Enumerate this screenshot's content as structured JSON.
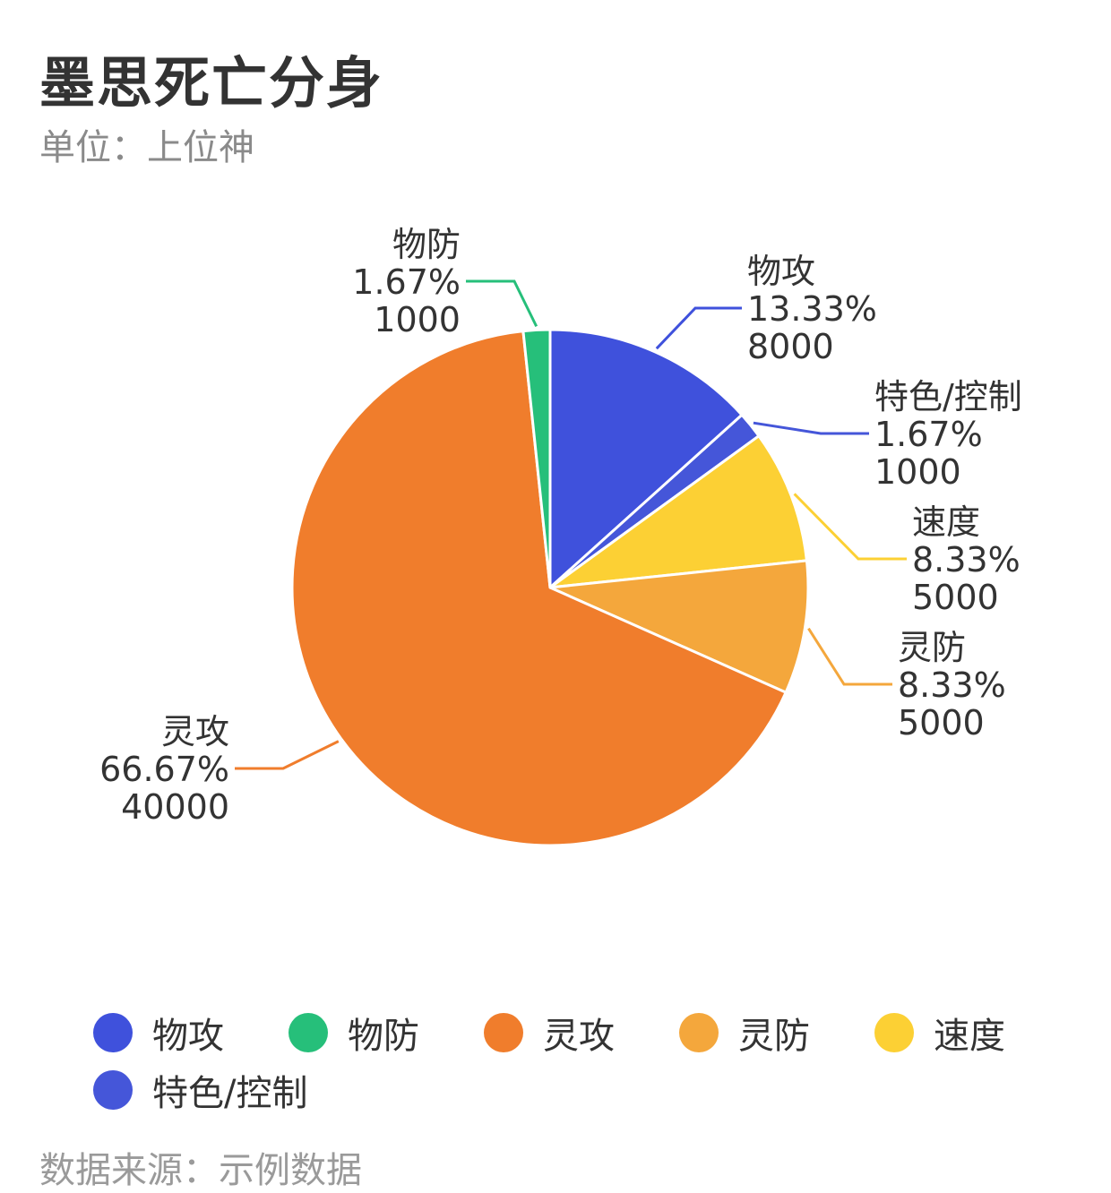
{
  "title": "墨思死亡分身",
  "subtitle": "单位：上位神",
  "footer": "数据来源：示例数据",
  "chart_data": {
    "type": "pie",
    "title": "墨思死亡分身",
    "subtitle": "单位：上位神",
    "legend_position": "bottom",
    "slices": [
      {
        "name": "物攻",
        "value": 8000,
        "percent": "13.33%",
        "color": "#3f51dc"
      },
      {
        "name": "物防",
        "value": 1000,
        "percent": "1.67%",
        "color": "#26bf7a"
      },
      {
        "name": "灵攻",
        "value": 40000,
        "percent": "66.67%",
        "color": "#f07d2c"
      },
      {
        "name": "灵防",
        "value": 5000,
        "percent": "8.33%",
        "color": "#f4a73c"
      },
      {
        "name": "速度",
        "value": 5000,
        "percent": "8.33%",
        "color": "#fcd034"
      },
      {
        "name": "特色/控制",
        "value": 1000,
        "percent": "1.67%",
        "color": "#4556d9"
      }
    ],
    "order_clockwise": [
      "物攻",
      "特色/控制",
      "速度",
      "灵防",
      "灵攻",
      "物防"
    ]
  }
}
